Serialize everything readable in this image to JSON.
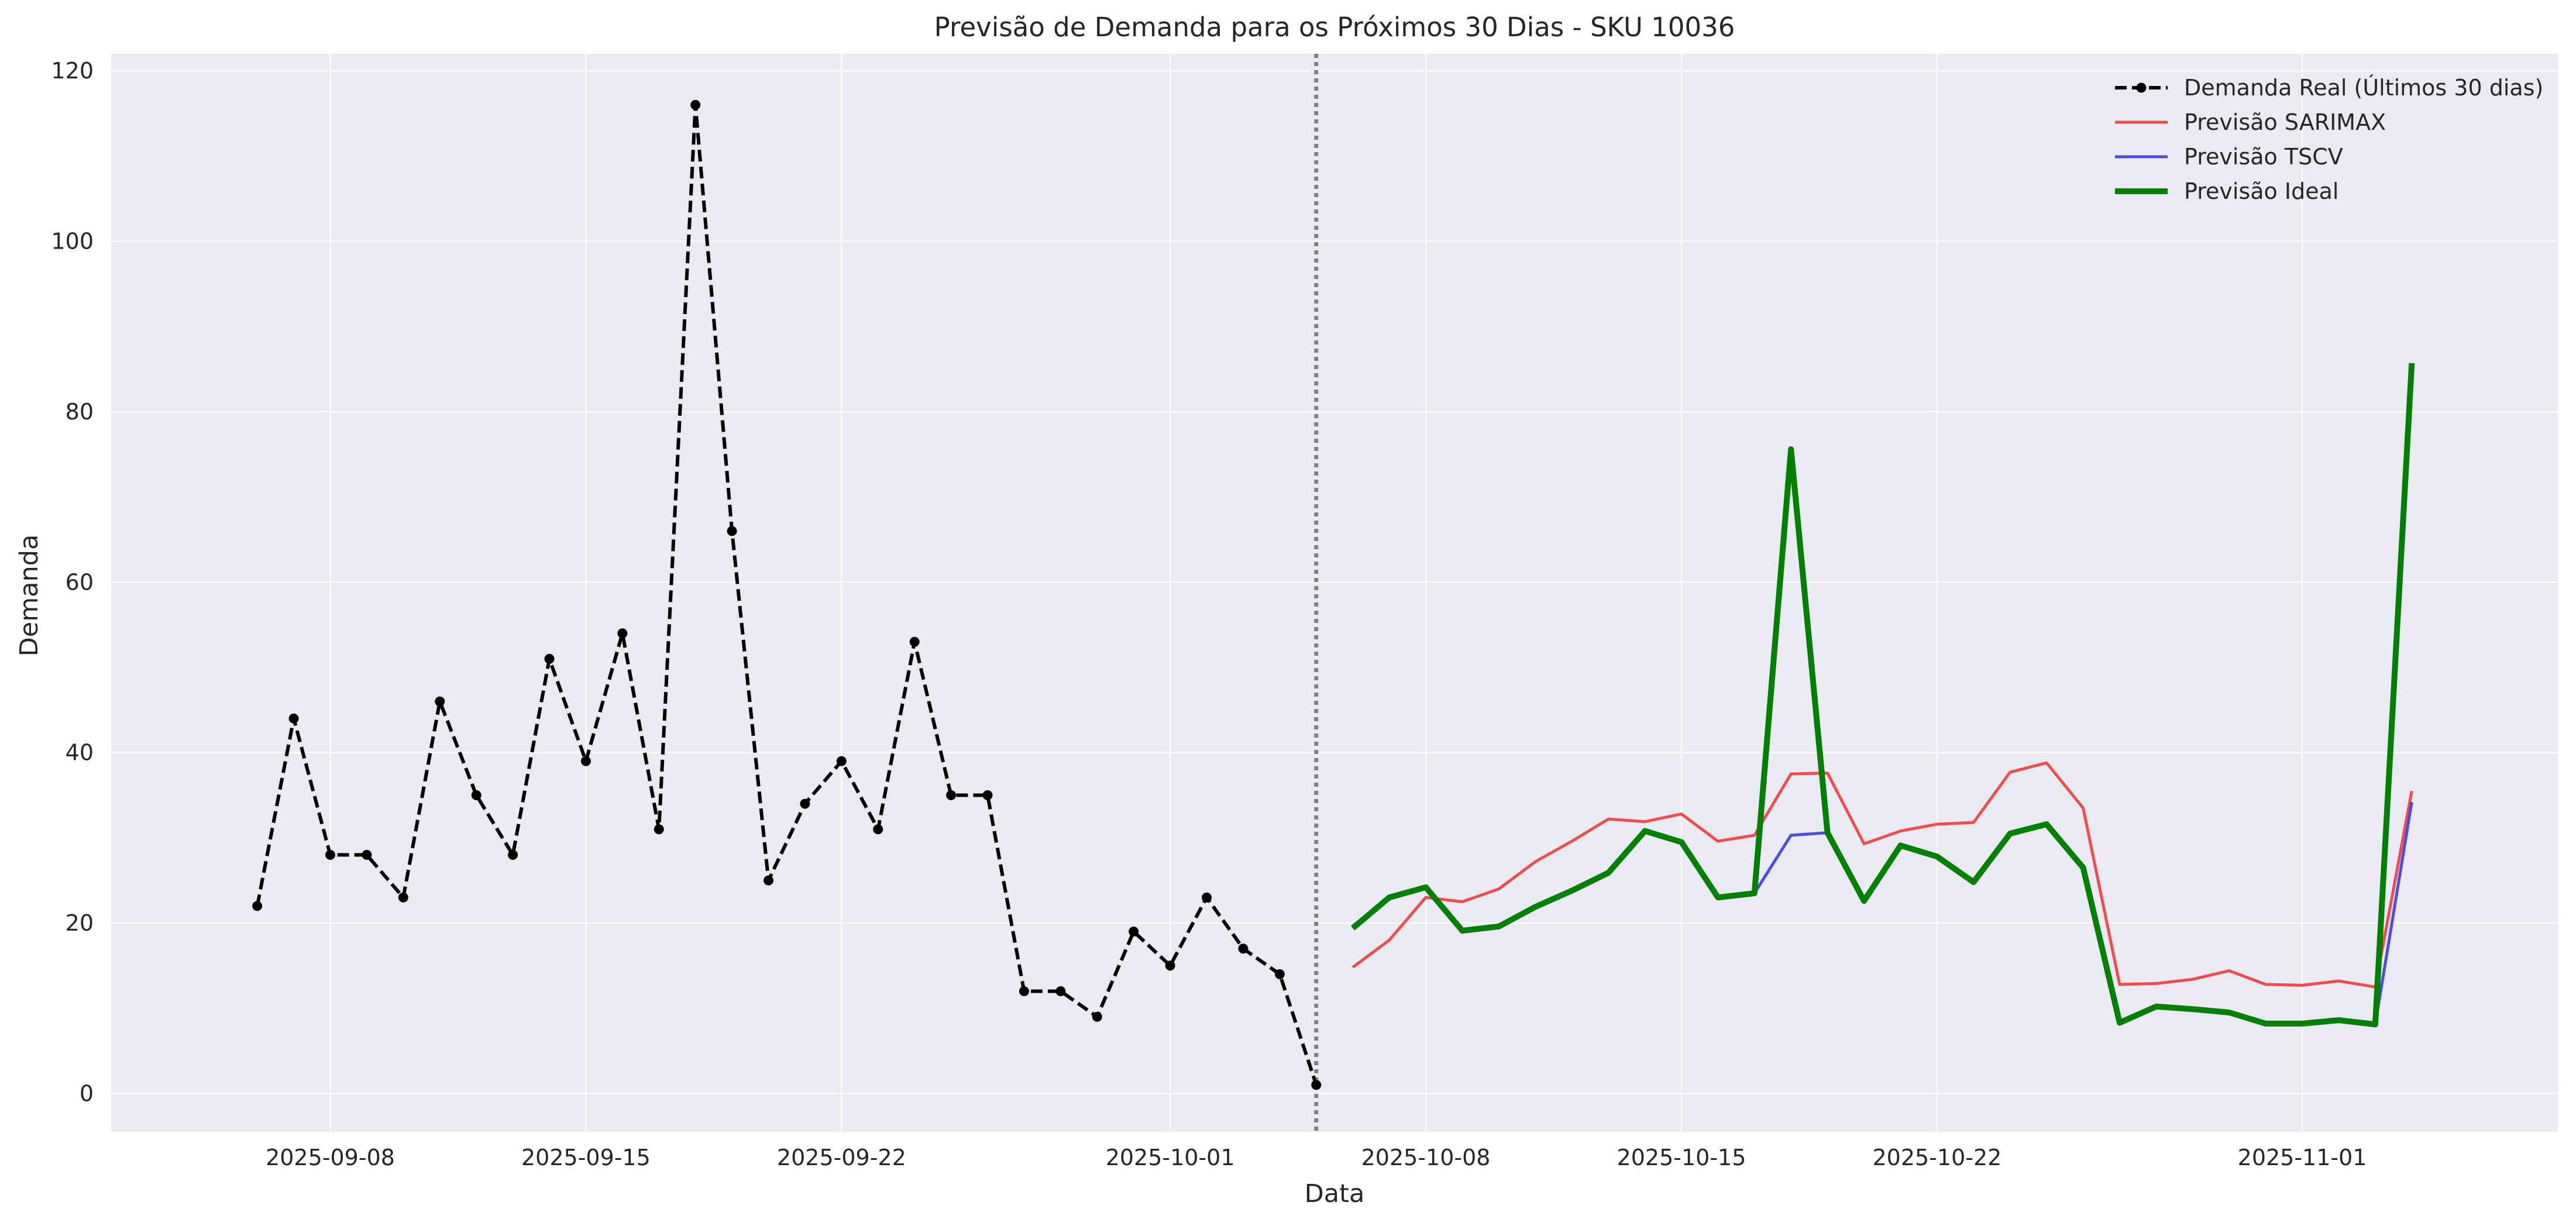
{
  "chart_data": {
    "type": "line",
    "title": "Previsão de Demanda para os Próximos 30 Dias - SKU 10036",
    "xlabel": "Data",
    "ylabel": "Demanda",
    "x_axis_type": "date",
    "xlim": [
      "2025-09-02",
      "2025-11-08"
    ],
    "ylim": [
      -4.5,
      122
    ],
    "x_ticks": [
      "2025-09-08",
      "2025-09-15",
      "2025-09-22",
      "2025-10-01",
      "2025-10-08",
      "2025-10-15",
      "2025-10-22",
      "2025-11-01"
    ],
    "y_ticks": [
      0,
      20,
      40,
      60,
      80,
      100,
      120
    ],
    "grid": true,
    "legend_position": "top-right",
    "background_color": "#eaeaf2",
    "grid_color": "#ffffff",
    "vertical_marker": {
      "x": "2025-10-05",
      "style": "dotted",
      "color": "#808080"
    },
    "series": [
      {
        "name": "Demanda Real (Últimos 30 dias)",
        "color": "#000000",
        "style": "dashed-with-markers",
        "x": [
          "2025-09-06",
          "2025-09-07",
          "2025-09-08",
          "2025-09-09",
          "2025-09-10",
          "2025-09-11",
          "2025-09-12",
          "2025-09-13",
          "2025-09-14",
          "2025-09-15",
          "2025-09-16",
          "2025-09-17",
          "2025-09-18",
          "2025-09-19",
          "2025-09-20",
          "2025-09-21",
          "2025-09-22",
          "2025-09-23",
          "2025-09-24",
          "2025-09-25",
          "2025-09-26",
          "2025-09-27",
          "2025-09-28",
          "2025-09-29",
          "2025-09-30",
          "2025-10-01",
          "2025-10-02",
          "2025-10-03",
          "2025-10-04",
          "2025-10-05"
        ],
        "values": [
          22,
          44,
          28,
          28,
          23,
          46,
          35,
          28,
          51,
          39,
          54,
          31,
          116,
          66,
          25,
          34,
          39,
          31,
          53,
          35,
          35,
          12,
          12,
          9,
          19,
          15,
          23,
          17,
          14,
          1
        ]
      },
      {
        "name": "Previsão SARIMAX",
        "color": "#ee3b3b",
        "style": "solid",
        "x": [
          "2025-10-06",
          "2025-10-07",
          "2025-10-08",
          "2025-10-09",
          "2025-10-10",
          "2025-10-11",
          "2025-10-12",
          "2025-10-13",
          "2025-10-14",
          "2025-10-15",
          "2025-10-16",
          "2025-10-17",
          "2025-10-18",
          "2025-10-19",
          "2025-10-20",
          "2025-10-21",
          "2025-10-22",
          "2025-10-23",
          "2025-10-24",
          "2025-10-25",
          "2025-10-26",
          "2025-10-27",
          "2025-10-28",
          "2025-10-29",
          "2025-10-30",
          "2025-10-31",
          "2025-11-01",
          "2025-11-02",
          "2025-11-03",
          "2025-11-04"
        ],
        "values": [
          14.8,
          18,
          23,
          22.5,
          24,
          27.2,
          29.6,
          32.2,
          31.9,
          32.8,
          29.6,
          30.3,
          37.5,
          37.6,
          29.3,
          30.8,
          31.6,
          31.8,
          37.7,
          38.8,
          33.5,
          12.8,
          12.9,
          13.4,
          14.4,
          12.8,
          12.7,
          13.2,
          12.5,
          35.5
        ]
      },
      {
        "name": "Previsão TSCV",
        "color": "#3b3bdb",
        "style": "solid",
        "x": [
          "2025-10-06",
          "2025-10-07",
          "2025-10-08",
          "2025-10-09",
          "2025-10-10",
          "2025-10-11",
          "2025-10-12",
          "2025-10-13",
          "2025-10-14",
          "2025-10-15",
          "2025-10-16",
          "2025-10-17",
          "2025-10-18",
          "2025-10-19",
          "2025-10-20",
          "2025-10-21",
          "2025-10-22",
          "2025-10-23",
          "2025-10-24",
          "2025-10-25",
          "2025-10-26",
          "2025-10-27",
          "2025-10-28",
          "2025-10-29",
          "2025-10-30",
          "2025-10-31",
          "2025-11-01",
          "2025-11-02",
          "2025-11-03",
          "2025-11-04"
        ],
        "values": [
          19.4,
          23,
          24.2,
          19.1,
          19.6,
          21.9,
          23.8,
          25.9,
          30.8,
          29.5,
          23,
          23.5,
          30.3,
          30.6,
          22.6,
          29.1,
          27.8,
          24.8,
          30.5,
          31.6,
          26.5,
          8.3,
          10.2,
          9.9,
          9.5,
          8.2,
          8.2,
          8.6,
          8.1,
          34.2
        ]
      },
      {
        "name": "Previsão Ideal",
        "color": "#008000",
        "style": "solid-thick",
        "x": [
          "2025-10-06",
          "2025-10-07",
          "2025-10-08",
          "2025-10-09",
          "2025-10-10",
          "2025-10-11",
          "2025-10-12",
          "2025-10-13",
          "2025-10-14",
          "2025-10-15",
          "2025-10-16",
          "2025-10-17",
          "2025-10-18",
          "2025-10-19",
          "2025-10-20",
          "2025-10-21",
          "2025-10-22",
          "2025-10-23",
          "2025-10-24",
          "2025-10-25",
          "2025-10-26",
          "2025-10-27",
          "2025-10-28",
          "2025-10-29",
          "2025-10-30",
          "2025-10-31",
          "2025-11-01",
          "2025-11-02",
          "2025-11-03",
          "2025-11-04"
        ],
        "values": [
          19.4,
          23,
          24.2,
          19.1,
          19.6,
          21.9,
          23.8,
          25.9,
          30.8,
          29.5,
          23,
          23.5,
          75.6,
          30.6,
          22.6,
          29.1,
          27.8,
          24.8,
          30.5,
          31.6,
          26.5,
          8.3,
          10.2,
          9.9,
          9.5,
          8.2,
          8.2,
          8.6,
          8.1,
          85.7
        ]
      }
    ]
  }
}
